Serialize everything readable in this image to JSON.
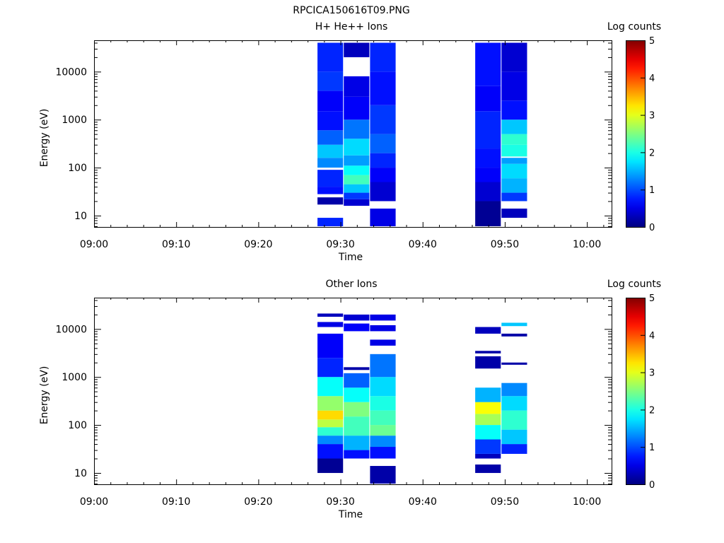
{
  "chart_data": {
    "title": "RPCICA150616T09.PNG",
    "type": "heatmap",
    "panels": [
      {
        "id": "hplus",
        "title": "H+ He++ Ions",
        "xlabel": "Time",
        "ylabel": "Energy (eV)",
        "colorbar_label": "Log counts",
        "x_ticks": [
          "09:00",
          "09:10",
          "09:20",
          "09:30",
          "09:40",
          "09:50",
          "10:00"
        ],
        "x_tick_minutes": [
          0,
          10,
          20,
          30,
          40,
          50,
          60
        ],
        "x_range_minutes": [
          0,
          63
        ],
        "y_scale": "log",
        "y_ticks": [
          10,
          100,
          1000,
          10000
        ],
        "y_tick_labels": [
          "10",
          "100",
          "1000",
          "10000"
        ],
        "y_range": [
          5.8,
          45000
        ],
        "colorbar_range": [
          0,
          5
        ],
        "colorbar_ticks": [
          "0",
          "1",
          "2",
          "3",
          "4",
          "5"
        ],
        "columns": [
          {
            "t_start": 27.2,
            "t_end": 30.4,
            "bins": [
              {
                "e_lo": 6,
                "e_hi": 9,
                "v": 0.8
              },
              {
                "e_lo": 17,
                "e_hi": 24,
                "v": 0.2
              },
              {
                "e_lo": 28,
                "e_hi": 40,
                "v": 0.7
              },
              {
                "e_lo": 40,
                "e_hi": 90,
                "v": 0.8
              },
              {
                "e_lo": 100,
                "e_hi": 160,
                "v": 1.3
              },
              {
                "e_lo": 160,
                "e_hi": 300,
                "v": 1.6
              },
              {
                "e_lo": 300,
                "e_hi": 600,
                "v": 1.1
              },
              {
                "e_lo": 600,
                "e_hi": 1500,
                "v": 0.7
              },
              {
                "e_lo": 1500,
                "e_hi": 4000,
                "v": 0.6
              },
              {
                "e_lo": 4000,
                "e_hi": 10000,
                "v": 0.9
              },
              {
                "e_lo": 10000,
                "e_hi": 40000,
                "v": 0.8
              }
            ]
          },
          {
            "t_start": 30.4,
            "t_end": 33.6,
            "bins": [
              {
                "e_lo": 16,
                "e_hi": 22,
                "v": 0.4
              },
              {
                "e_lo": 22,
                "e_hi": 30,
                "v": 0.9
              },
              {
                "e_lo": 30,
                "e_hi": 45,
                "v": 1.6
              },
              {
                "e_lo": 45,
                "e_hi": 70,
                "v": 2.2
              },
              {
                "e_lo": 70,
                "e_hi": 110,
                "v": 1.9
              },
              {
                "e_lo": 110,
                "e_hi": 180,
                "v": 1.4
              },
              {
                "e_lo": 180,
                "e_hi": 400,
                "v": 1.7
              },
              {
                "e_lo": 400,
                "e_hi": 1000,
                "v": 1.2
              },
              {
                "e_lo": 1000,
                "e_hi": 3000,
                "v": 0.6
              },
              {
                "e_lo": 3000,
                "e_hi": 8000,
                "v": 0.5
              },
              {
                "e_lo": 20000,
                "e_hi": 40000,
                "v": 0.3
              }
            ]
          },
          {
            "t_start": 33.6,
            "t_end": 36.8,
            "bins": [
              {
                "e_lo": 6,
                "e_hi": 14,
                "v": 0.5
              },
              {
                "e_lo": 20,
                "e_hi": 50,
                "v": 0.4
              },
              {
                "e_lo": 50,
                "e_hi": 100,
                "v": 0.6
              },
              {
                "e_lo": 100,
                "e_hi": 200,
                "v": 0.8
              },
              {
                "e_lo": 200,
                "e_hi": 500,
                "v": 1.1
              },
              {
                "e_lo": 500,
                "e_hi": 2000,
                "v": 0.9
              },
              {
                "e_lo": 2000,
                "e_hi": 10000,
                "v": 0.7
              },
              {
                "e_lo": 10000,
                "e_hi": 40000,
                "v": 0.8
              }
            ]
          },
          {
            "t_start": 46.4,
            "t_end": 49.6,
            "bins": [
              {
                "e_lo": 6,
                "e_hi": 20,
                "v": 0.1
              },
              {
                "e_lo": 20,
                "e_hi": 50,
                "v": 0.4
              },
              {
                "e_lo": 50,
                "e_hi": 100,
                "v": 0.6
              },
              {
                "e_lo": 100,
                "e_hi": 250,
                "v": 0.7
              },
              {
                "e_lo": 250,
                "e_hi": 1500,
                "v": 0.8
              },
              {
                "e_lo": 1500,
                "e_hi": 5000,
                "v": 0.6
              },
              {
                "e_lo": 5000,
                "e_hi": 40000,
                "v": 0.7
              }
            ]
          },
          {
            "t_start": 49.6,
            "t_end": 52.8,
            "bins": [
              {
                "e_lo": 9,
                "e_hi": 14,
                "v": 0.3
              },
              {
                "e_lo": 20,
                "e_hi": 30,
                "v": 0.9
              },
              {
                "e_lo": 30,
                "e_hi": 60,
                "v": 1.5
              },
              {
                "e_lo": 60,
                "e_hi": 120,
                "v": 1.7
              },
              {
                "e_lo": 120,
                "e_hi": 160,
                "v": 1.4
              },
              {
                "e_lo": 170,
                "e_hi": 300,
                "v": 2.0
              },
              {
                "e_lo": 300,
                "e_hi": 500,
                "v": 2.1
              },
              {
                "e_lo": 500,
                "e_hi": 1000,
                "v": 1.6
              },
              {
                "e_lo": 1000,
                "e_hi": 2500,
                "v": 0.7
              },
              {
                "e_lo": 2500,
                "e_hi": 10000,
                "v": 0.5
              },
              {
                "e_lo": 10000,
                "e_hi": 40000,
                "v": 0.4
              }
            ]
          }
        ]
      },
      {
        "id": "other",
        "title": "Other Ions",
        "xlabel": "Time",
        "ylabel": "Energy (eV)",
        "colorbar_label": "Log counts",
        "x_ticks": [
          "09:00",
          "09:10",
          "09:20",
          "09:30",
          "09:40",
          "09:50",
          "10:00"
        ],
        "x_tick_minutes": [
          0,
          10,
          20,
          30,
          40,
          50,
          60
        ],
        "x_range_minutes": [
          0,
          63
        ],
        "y_scale": "log",
        "y_ticks": [
          10,
          100,
          1000,
          10000
        ],
        "y_tick_labels": [
          "10",
          "100",
          "1000",
          "10000"
        ],
        "y_range": [
          5.8,
          45000
        ],
        "colorbar_range": [
          0,
          5
        ],
        "colorbar_ticks": [
          "0",
          "1",
          "2",
          "3",
          "4",
          "5"
        ],
        "columns": [
          {
            "t_start": 27.2,
            "t_end": 30.4,
            "bins": [
              {
                "e_lo": 10,
                "e_hi": 20,
                "v": 0.1
              },
              {
                "e_lo": 20,
                "e_hi": 40,
                "v": 0.7
              },
              {
                "e_lo": 40,
                "e_hi": 60,
                "v": 1.3
              },
              {
                "e_lo": 60,
                "e_hi": 90,
                "v": 2.1
              },
              {
                "e_lo": 90,
                "e_hi": 130,
                "v": 2.8
              },
              {
                "e_lo": 130,
                "e_hi": 200,
                "v": 3.3
              },
              {
                "e_lo": 200,
                "e_hi": 400,
                "v": 2.6
              },
              {
                "e_lo": 400,
                "e_hi": 1000,
                "v": 1.9
              },
              {
                "e_lo": 1000,
                "e_hi": 2500,
                "v": 0.8
              },
              {
                "e_lo": 2500,
                "e_hi": 8000,
                "v": 0.6
              },
              {
                "e_lo": 11000,
                "e_hi": 14000,
                "v": 0.5
              },
              {
                "e_lo": 18000,
                "e_hi": 21000,
                "v": 0.3
              }
            ]
          },
          {
            "t_start": 30.4,
            "t_end": 33.6,
            "bins": [
              {
                "e_lo": 20,
                "e_hi": 30,
                "v": 0.7
              },
              {
                "e_lo": 30,
                "e_hi": 60,
                "v": 1.5
              },
              {
                "e_lo": 60,
                "e_hi": 150,
                "v": 2.2
              },
              {
                "e_lo": 150,
                "e_hi": 300,
                "v": 2.5
              },
              {
                "e_lo": 300,
                "e_hi": 600,
                "v": 1.9
              },
              {
                "e_lo": 600,
                "e_hi": 1200,
                "v": 1.1
              },
              {
                "e_lo": 1400,
                "e_hi": 1600,
                "v": 0.2
              },
              {
                "e_lo": 9000,
                "e_hi": 13000,
                "v": 0.6
              },
              {
                "e_lo": 15000,
                "e_hi": 20000,
                "v": 0.4
              }
            ]
          },
          {
            "t_start": 33.6,
            "t_end": 36.8,
            "bins": [
              {
                "e_lo": 6,
                "e_hi": 14,
                "v": 0.2
              },
              {
                "e_lo": 20,
                "e_hi": 35,
                "v": 0.7
              },
              {
                "e_lo": 35,
                "e_hi": 60,
                "v": 1.3
              },
              {
                "e_lo": 60,
                "e_hi": 100,
                "v": 2.4
              },
              {
                "e_lo": 100,
                "e_hi": 200,
                "v": 2.2
              },
              {
                "e_lo": 200,
                "e_hi": 400,
                "v": 2.0
              },
              {
                "e_lo": 400,
                "e_hi": 1000,
                "v": 1.7
              },
              {
                "e_lo": 1000,
                "e_hi": 3000,
                "v": 1.2
              },
              {
                "e_lo": 4500,
                "e_hi": 6000,
                "v": 0.5
              },
              {
                "e_lo": 9000,
                "e_hi": 12000,
                "v": 0.5
              },
              {
                "e_lo": 15000,
                "e_hi": 20000,
                "v": 0.5
              }
            ]
          },
          {
            "t_start": 46.4,
            "t_end": 49.6,
            "bins": [
              {
                "e_lo": 10,
                "e_hi": 15,
                "v": 0.2
              },
              {
                "e_lo": 20,
                "e_hi": 25,
                "v": 0.3
              },
              {
                "e_lo": 25,
                "e_hi": 50,
                "v": 0.9
              },
              {
                "e_lo": 50,
                "e_hi": 100,
                "v": 1.9
              },
              {
                "e_lo": 100,
                "e_hi": 170,
                "v": 2.7
              },
              {
                "e_lo": 170,
                "e_hi": 300,
                "v": 3.1
              },
              {
                "e_lo": 300,
                "e_hi": 600,
                "v": 1.5
              },
              {
                "e_lo": 1500,
                "e_hi": 2700,
                "v": 0.2
              },
              {
                "e_lo": 3100,
                "e_hi": 3500,
                "v": 0.2
              },
              {
                "e_lo": 8000,
                "e_hi": 11000,
                "v": 0.3
              }
            ]
          },
          {
            "t_start": 49.6,
            "t_end": 52.8,
            "bins": [
              {
                "e_lo": 25,
                "e_hi": 40,
                "v": 0.8
              },
              {
                "e_lo": 40,
                "e_hi": 80,
                "v": 1.6
              },
              {
                "e_lo": 80,
                "e_hi": 200,
                "v": 2.1
              },
              {
                "e_lo": 200,
                "e_hi": 400,
                "v": 1.7
              },
              {
                "e_lo": 400,
                "e_hi": 750,
                "v": 1.3
              },
              {
                "e_lo": 1800,
                "e_hi": 2000,
                "v": 0.2
              },
              {
                "e_lo": 7000,
                "e_hi": 8000,
                "v": 0.2
              },
              {
                "e_lo": 11500,
                "e_hi": 13500,
                "v": 1.6
              }
            ]
          }
        ]
      }
    ]
  }
}
